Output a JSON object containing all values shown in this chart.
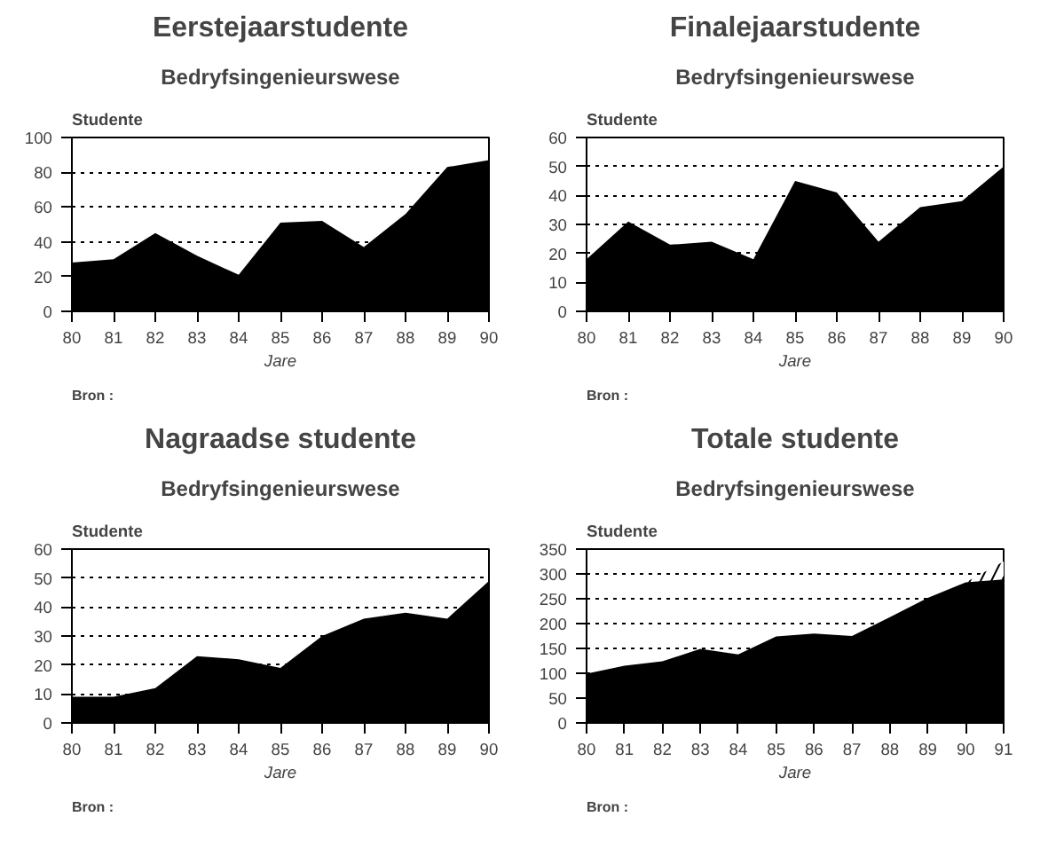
{
  "chart_data": [
    {
      "type": "area",
      "title": "Eerstejaarstudente",
      "subtitle": "Bedryfsingenieurswese",
      "xlabel": "Jare",
      "ylabel": "Studente",
      "annotations": [
        "Bron :"
      ],
      "x": [
        80,
        81,
        82,
        83,
        84,
        85,
        86,
        87,
        88,
        89,
        90
      ],
      "xlim": [
        80,
        90
      ],
      "xticks": [
        80,
        81,
        82,
        83,
        84,
        85,
        86,
        87,
        88,
        89,
        90
      ],
      "ylim": [
        0,
        100
      ],
      "yticks": [
        0,
        20,
        40,
        60,
        80,
        100
      ],
      "grid": "y",
      "series": [
        {
          "color": "#000000",
          "values": [
            28,
            30,
            45,
            32,
            21,
            51,
            52,
            37,
            56,
            83,
            87
          ]
        }
      ]
    },
    {
      "type": "area",
      "title": "Finalejaarstudente",
      "subtitle": "Bedryfsingenieurswese",
      "xlabel": "Jare",
      "ylabel": "Studente",
      "annotations": [
        "Bron :"
      ],
      "x": [
        80,
        81,
        82,
        83,
        84,
        85,
        86,
        87,
        88,
        89,
        90
      ],
      "xlim": [
        80,
        90
      ],
      "xticks": [
        80,
        81,
        82,
        83,
        84,
        85,
        86,
        87,
        88,
        89,
        90
      ],
      "ylim": [
        0,
        60
      ],
      "yticks": [
        0,
        10,
        20,
        30,
        40,
        50,
        60
      ],
      "grid": "y",
      "series": [
        {
          "color": "#000000",
          "values": [
            18,
            31,
            23,
            24,
            18,
            45,
            41,
            24,
            36,
            38,
            50
          ]
        }
      ]
    },
    {
      "type": "area",
      "title": "Nagraadse studente",
      "subtitle": "Bedryfsingenieurswese",
      "xlabel": "Jare",
      "ylabel": "Studente",
      "annotations": [
        "Bron :"
      ],
      "x": [
        80,
        81,
        82,
        83,
        84,
        85,
        86,
        87,
        88,
        89,
        90
      ],
      "xlim": [
        80,
        90
      ],
      "xticks": [
        80,
        81,
        82,
        83,
        84,
        85,
        86,
        87,
        88,
        89,
        90
      ],
      "ylim": [
        0,
        60
      ],
      "yticks": [
        0,
        10,
        20,
        30,
        40,
        50,
        60
      ],
      "grid": "y",
      "series": [
        {
          "color": "#000000",
          "values": [
            9,
            9,
            12,
            23,
            22,
            19,
            30,
            36,
            38,
            36,
            49
          ]
        }
      ]
    },
    {
      "type": "area",
      "title": "Totale studente",
      "subtitle": "Bedryfsingenieurswese",
      "xlabel": "Jare",
      "ylabel": "Studente",
      "annotations": [
        "Bron :"
      ],
      "x": [
        80,
        81,
        82,
        83,
        84,
        85,
        86,
        87,
        88,
        89,
        90,
        91
      ],
      "xlim": [
        80,
        91
      ],
      "xticks": [
        80,
        81,
        82,
        83,
        84,
        85,
        86,
        87,
        88,
        89,
        90,
        91
      ],
      "ylim": [
        0,
        350
      ],
      "yticks": [
        0,
        50,
        100,
        150,
        200,
        250,
        300,
        350
      ],
      "grid": "y",
      "series": [
        {
          "color": "#000000",
          "values": [
            99,
            115,
            124,
            149,
            138,
            174,
            180,
            175,
            213,
            252,
            283,
            289
          ]
        },
        {
          "color": "#ffffff",
          "x": [
            90,
            91
          ],
          "values": [
            283,
            325
          ]
        }
      ]
    }
  ]
}
